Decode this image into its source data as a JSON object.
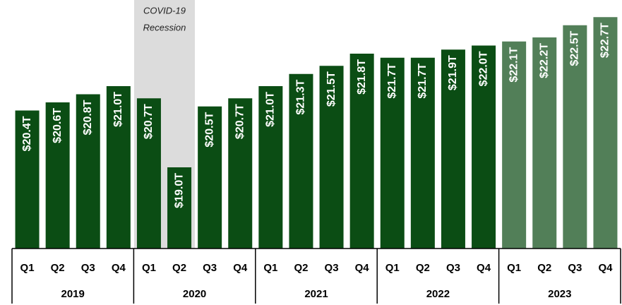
{
  "chart_data": {
    "type": "bar",
    "annotation": [
      "COVID-19",
      "Recession"
    ],
    "categories": [
      "Q1",
      "Q2",
      "Q3",
      "Q4",
      "Q1",
      "Q2",
      "Q3",
      "Q4",
      "Q1",
      "Q2",
      "Q3",
      "Q4",
      "Q1",
      "Q2",
      "Q3",
      "Q4",
      "Q1",
      "Q2",
      "Q3",
      "Q4"
    ],
    "years": [
      "2019",
      "2020",
      "2021",
      "2022",
      "2023"
    ],
    "values": [
      20.4,
      20.6,
      20.8,
      21.0,
      20.7,
      19.0,
      20.5,
      20.7,
      21.0,
      21.3,
      21.5,
      21.8,
      21.7,
      21.7,
      21.9,
      22.0,
      22.1,
      22.2,
      22.5,
      22.7
    ],
    "value_labels": [
      "$20.4T",
      "$20.6T",
      "$20.8T",
      "$21.0T",
      "$20.7T",
      "$19.0T",
      "$20.5T",
      "$20.7T",
      "$21.0T",
      "$21.3T",
      "$21.5T",
      "$21.8T",
      "$21.7T",
      "$21.7T",
      "$21.9T",
      "$22.0T",
      "$22.1T",
      "$22.2T",
      "$22.5T",
      "$22.7T"
    ],
    "colors": [
      "#0b4d14",
      "#0b4d14",
      "#0b4d14",
      "#0b4d14",
      "#0b4d14",
      "#0b4d14",
      "#0b4d14",
      "#0b4d14",
      "#0b4d14",
      "#0b4d14",
      "#0b4d14",
      "#0b4d14",
      "#0b4d14",
      "#0b4d14",
      "#0b4d14",
      "#0b4d14",
      "#527f58",
      "#527f58",
      "#527f58",
      "#527f58"
    ],
    "ylim": [
      17,
      23
    ]
  }
}
